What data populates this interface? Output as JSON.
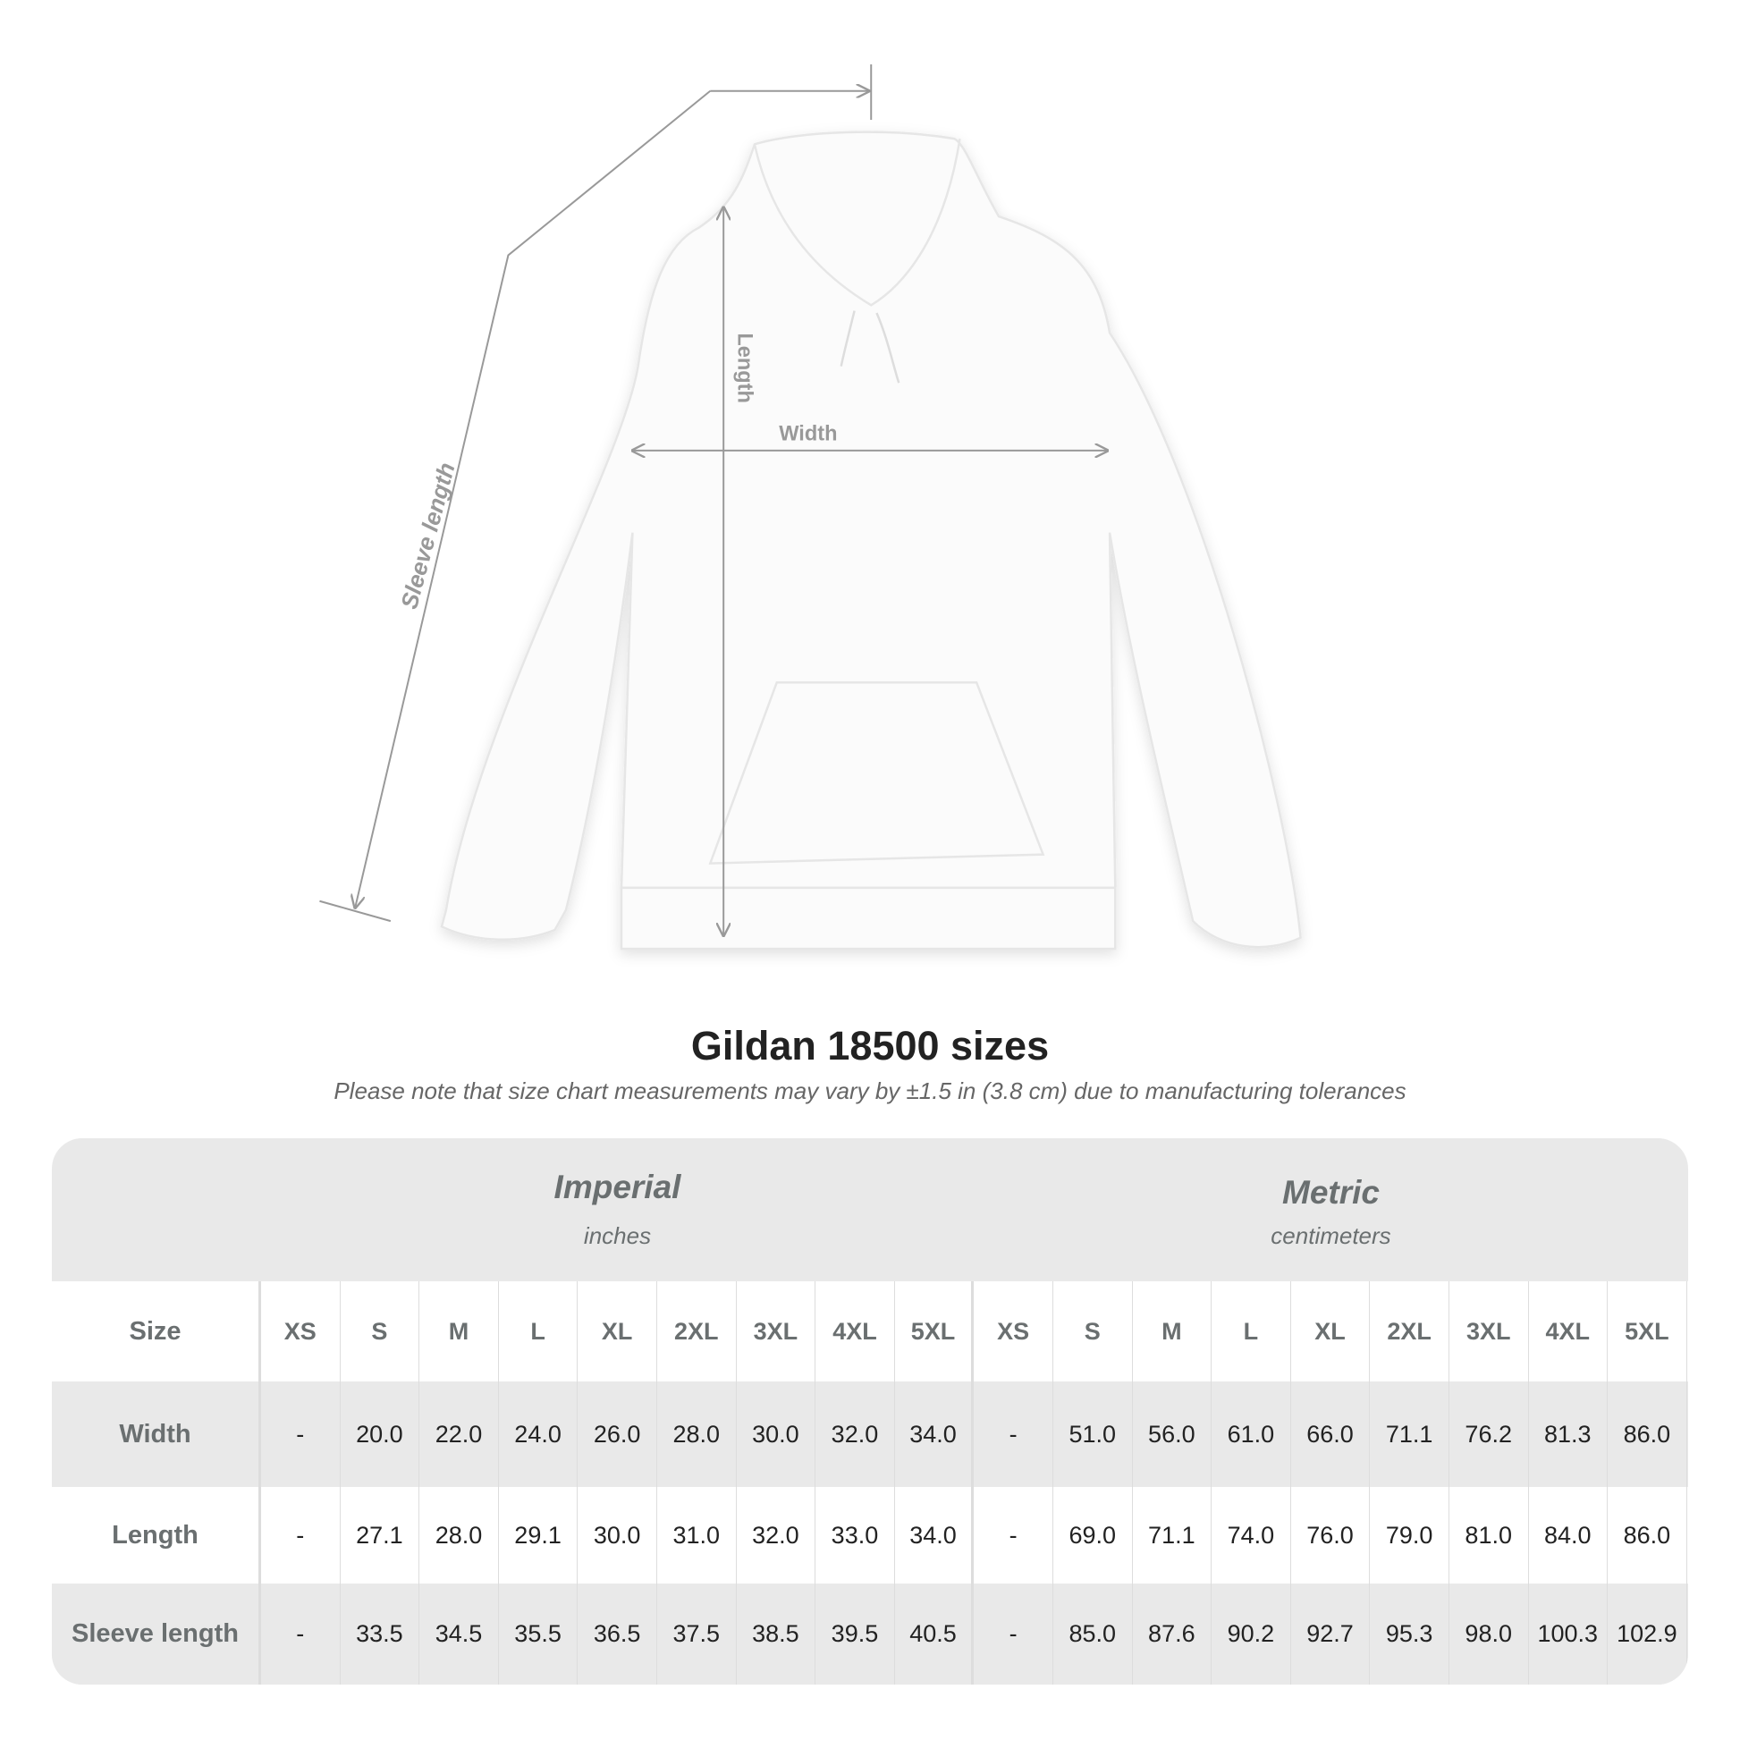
{
  "diagram": {
    "labels": {
      "length": "Length",
      "width": "Width",
      "sleeve": "Sleeve length"
    }
  },
  "title": "Gildan 18500 sizes",
  "subtitle": "Please note that size chart measurements may vary by ±1.5 in (3.8 cm) due to manufacturing tolerances",
  "table": {
    "imperial": {
      "title": "Imperial",
      "unit": "inches"
    },
    "metric": {
      "title": "Metric",
      "unit": "centimeters"
    },
    "size_label": "Size",
    "sizes": [
      "XS",
      "S",
      "M",
      "L",
      "XL",
      "2XL",
      "3XL",
      "4XL",
      "5XL"
    ],
    "rows": [
      {
        "label": "Width",
        "imperial": [
          "-",
          "20.0",
          "22.0",
          "24.0",
          "26.0",
          "28.0",
          "30.0",
          "32.0",
          "34.0"
        ],
        "metric": [
          "-",
          "51.0",
          "56.0",
          "61.0",
          "66.0",
          "71.1",
          "76.2",
          "81.3",
          "86.0"
        ]
      },
      {
        "label": "Length",
        "imperial": [
          "-",
          "27.1",
          "28.0",
          "29.1",
          "30.0",
          "31.0",
          "32.0",
          "33.0",
          "34.0"
        ],
        "metric": [
          "-",
          "69.0",
          "71.1",
          "74.0",
          "76.0",
          "79.0",
          "81.0",
          "84.0",
          "86.0"
        ]
      },
      {
        "label": "Sleeve length",
        "imperial": [
          "-",
          "33.5",
          "34.5",
          "35.5",
          "36.5",
          "37.5",
          "38.5",
          "39.5",
          "40.5"
        ],
        "metric": [
          "-",
          "85.0",
          "87.6",
          "90.2",
          "92.7",
          "95.3",
          "98.0",
          "100.3",
          "102.9"
        ]
      }
    ]
  }
}
